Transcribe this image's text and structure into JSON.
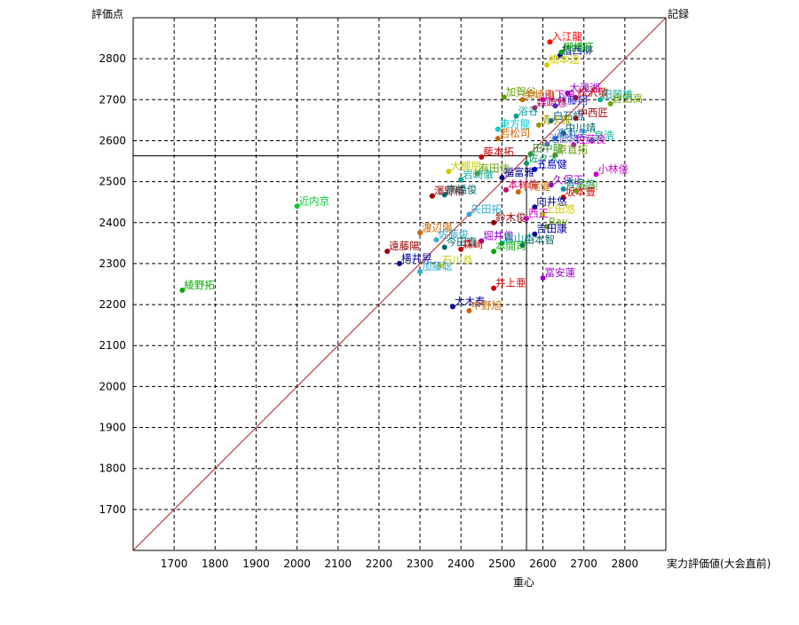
{
  "chart_data": {
    "type": "scatter",
    "xlabel": "実力評価値(大会直前)",
    "ylabel": "評価点",
    "diagonal_label": "記録",
    "centroid_label": "重心",
    "xlim": [
      1600,
      2900
    ],
    "ylim": [
      1600,
      2900
    ],
    "x_ticks": [
      1700,
      1800,
      1900,
      2000,
      2100,
      2200,
      2300,
      2400,
      2500,
      2600,
      2700,
      2800
    ],
    "y_ticks": [
      1700,
      1800,
      1900,
      2000,
      2100,
      2200,
      2300,
      2400,
      2500,
      2600,
      2700,
      2800
    ],
    "grid": true,
    "grid_style": "dashed",
    "diagonal": true,
    "diagonal_color": "#b22222",
    "centroid": {
      "x": 2560,
      "y": 2563
    },
    "points": [
      {
        "label": "入江龍",
        "x": 2617,
        "y": 2841,
        "color": "#ff0000"
      },
      {
        "label": "植西柳",
        "x": 2642,
        "y": 2808,
        "color": "#000099"
      },
      {
        "label": "棚橋旺",
        "x": 2645,
        "y": 2816,
        "color": "#00aa00"
      },
      {
        "label": "橋本逵",
        "x": 2610,
        "y": 2785,
        "color": "#cccc00"
      },
      {
        "label": "加賀谷",
        "x": 2505,
        "y": 2706,
        "color": "#669900"
      },
      {
        "label": "柴崎雅",
        "x": 2550,
        "y": 2700,
        "color": "#cc6600"
      },
      {
        "label": "山下鳴",
        "x": 2600,
        "y": 2700,
        "color": "#cc00cc"
      },
      {
        "label": "大渡湘",
        "x": 2660,
        "y": 2716,
        "color": "#9900cc"
      },
      {
        "label": "松沢敬",
        "x": 2680,
        "y": 2705,
        "color": "#cc0000"
      },
      {
        "label": "田岡雄",
        "x": 2740,
        "y": 2700,
        "color": "#00aa99"
      },
      {
        "label": "倉田高",
        "x": 2765,
        "y": 2690,
        "color": "#66aa00"
      },
      {
        "label": "井藤翔",
        "x": 2630,
        "y": 2685,
        "color": "#3333cc"
      },
      {
        "label": "森崎悠",
        "x": 2580,
        "y": 2680,
        "color": "#cc0066"
      },
      {
        "label": "浴谷",
        "x": 2535,
        "y": 2660,
        "color": "#009999"
      },
      {
        "label": "中西匠",
        "x": 2680,
        "y": 2655,
        "color": "#990000"
      },
      {
        "label": "白石悟",
        "x": 2620,
        "y": 2648,
        "color": "#006699"
      },
      {
        "label": "清水雅",
        "x": 2590,
        "y": 2638,
        "color": "#999900"
      },
      {
        "label": "東方龍",
        "x": 2490,
        "y": 2628,
        "color": "#00cccc"
      },
      {
        "label": "若松司",
        "x": 2490,
        "y": 2605,
        "color": "#cc6600"
      },
      {
        "label": "中川靖",
        "x": 2650,
        "y": 2618,
        "color": "#006666"
      },
      {
        "label": "高丸圭",
        "x": 2630,
        "y": 2605,
        "color": "#0066cc"
      },
      {
        "label": "良浩",
        "x": 2720,
        "y": 2600,
        "color": "#00aa99"
      },
      {
        "label": "池部純",
        "x": 2610,
        "y": 2592,
        "color": "#6666cc"
      },
      {
        "label": "佐藤良",
        "x": 2675,
        "y": 2590,
        "color": "#cc00cc"
      },
      {
        "label": "田中龍",
        "x": 2570,
        "y": 2568,
        "color": "#339933"
      },
      {
        "label": "原直拓",
        "x": 2630,
        "y": 2565,
        "color": "#669900"
      },
      {
        "label": "藤本拓",
        "x": 2450,
        "y": 2560,
        "color": "#cc0000"
      },
      {
        "label": "佐々大",
        "x": 2560,
        "y": 2545,
        "color": "#009966"
      },
      {
        "label": "五島健",
        "x": 2580,
        "y": 2530,
        "color": "#0000cc"
      },
      {
        "label": "大槻朋",
        "x": 2370,
        "y": 2525,
        "color": "#cccc00"
      },
      {
        "label": "有田信",
        "x": 2440,
        "y": 2520,
        "color": "#669900"
      },
      {
        "label": "小林俊",
        "x": 2730,
        "y": 2518,
        "color": "#cc00cc"
      },
      {
        "label": "福富雅",
        "x": 2500,
        "y": 2510,
        "color": "#000099"
      },
      {
        "label": "岩崎徹",
        "x": 2400,
        "y": 2505,
        "color": "#00aa99"
      },
      {
        "label": "久保正",
        "x": 2620,
        "y": 2492,
        "color": "#9900cc"
      },
      {
        "label": "青島信",
        "x": 2650,
        "y": 2482,
        "color": "#009999"
      },
      {
        "label": "本村倫",
        "x": 2510,
        "y": 2480,
        "color": "#cc0066"
      },
      {
        "label": "石川",
        "x": 2680,
        "y": 2478,
        "color": "#66aa00"
      },
      {
        "label": "中尾健",
        "x": 2540,
        "y": 2475,
        "color": "#cc6600"
      },
      {
        "label": "澤野精",
        "x": 2330,
        "y": 2465,
        "color": "#990000"
      },
      {
        "label": "高橋俊",
        "x": 2360,
        "y": 2468,
        "color": "#006666"
      },
      {
        "label": "坂本豊",
        "x": 2650,
        "y": 2462,
        "color": "#cc0000"
      },
      {
        "label": "近内京",
        "x": 2000,
        "y": 2440,
        "color": "#00cc33"
      },
      {
        "label": "向井悠",
        "x": 2580,
        "y": 2438,
        "color": "#000099"
      },
      {
        "label": "矢田拓",
        "x": 2420,
        "y": 2420,
        "color": "#33aacc"
      },
      {
        "label": "上田悠",
        "x": 2600,
        "y": 2420,
        "color": "#cccc00"
      },
      {
        "label": "西正",
        "x": 2560,
        "y": 2410,
        "color": "#cc00cc"
      },
      {
        "label": "鈴木俊",
        "x": 2480,
        "y": 2400,
        "color": "#990000"
      },
      {
        "label": "Ray",
        "x": 2610,
        "y": 2390,
        "color": "#66aa00"
      },
      {
        "label": "渡辺陽",
        "x": 2300,
        "y": 2375,
        "color": "#cc6600"
      },
      {
        "label": "吉田康",
        "x": 2580,
        "y": 2372,
        "color": "#000099"
      },
      {
        "label": "佐藤俊",
        "x": 2340,
        "y": 2358,
        "color": "#33aacc"
      },
      {
        "label": "堀井俊",
        "x": 2450,
        "y": 2355,
        "color": "#9900cc"
      },
      {
        "label": "森山本",
        "x": 2500,
        "y": 2350,
        "color": "#009999"
      },
      {
        "label": "山本智",
        "x": 2550,
        "y": 2345,
        "color": "#006666"
      },
      {
        "label": "今田直",
        "x": 2360,
        "y": 2340,
        "color": "#006666"
      },
      {
        "label": "遠藤陽",
        "x": 2220,
        "y": 2330,
        "color": "#990000"
      },
      {
        "label": "森崎",
        "x": 2400,
        "y": 2335,
        "color": "#cc0000"
      },
      {
        "label": "本間司",
        "x": 2480,
        "y": 2330,
        "color": "#00aa00"
      },
      {
        "label": "横井晃",
        "x": 2250,
        "y": 2300,
        "color": "#000099"
      },
      {
        "label": "石川恭",
        "x": 2350,
        "y": 2295,
        "color": "#cccc00"
      },
      {
        "label": "加藤聡",
        "x": 2300,
        "y": 2280,
        "color": "#33aacc"
      },
      {
        "label": "冨安蓮",
        "x": 2600,
        "y": 2265,
        "color": "#9900cc"
      },
      {
        "label": "綾野拓",
        "x": 1720,
        "y": 2235,
        "color": "#00aa00"
      },
      {
        "label": "井上亜",
        "x": 2480,
        "y": 2240,
        "color": "#cc0000"
      },
      {
        "label": "大木泰",
        "x": 2380,
        "y": 2195,
        "color": "#000099"
      },
      {
        "label": "中野旭",
        "x": 2420,
        "y": 2185,
        "color": "#cc6600"
      }
    ]
  }
}
